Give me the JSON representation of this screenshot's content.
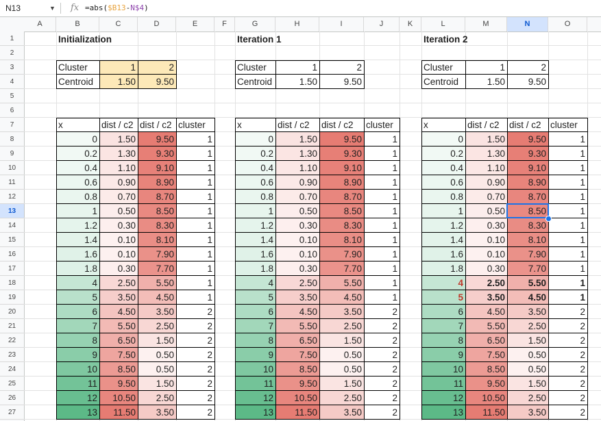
{
  "formula_bar": {
    "name_box": "N13",
    "fx": "fx",
    "formula_parts": [
      {
        "text": "=abs(",
        "color": "#1f1f1f"
      },
      {
        "text": "$B13",
        "color": "#e8a33d"
      },
      {
        "text": "-",
        "color": "#1f1f1f"
      },
      {
        "text": "N$4",
        "color": "#8e44ad"
      },
      {
        "text": ")",
        "color": "#1f1f1f"
      }
    ]
  },
  "columns": [
    "A",
    "B",
    "C",
    "D",
    "E",
    "F",
    "G",
    "H",
    "I",
    "J",
    "K",
    "L",
    "M",
    "N",
    "O"
  ],
  "rows": [
    "1",
    "2",
    "3",
    "4",
    "5",
    "6",
    "7",
    "8",
    "9",
    "10",
    "11",
    "12",
    "13",
    "14",
    "15",
    "16",
    "17",
    "18",
    "19",
    "20",
    "21",
    "22",
    "23",
    "24",
    "25",
    "26",
    "27"
  ],
  "selected_cell": {
    "col": "N",
    "row": "13"
  },
  "colors": {
    "cluster_header_fill": "#fde9b8",
    "green_low": "#f3faf6",
    "green_high": "#5cb987",
    "red_low": "#fdf1f0",
    "red_high": "#e67c73",
    "selection": "#1a73e8"
  },
  "blocks": [
    {
      "title": "Initialization",
      "cluster_label": "Cluster",
      "centroid_label": "Centroid",
      "clusters": [
        "1",
        "2"
      ],
      "centroids": [
        "1.50",
        "9.50"
      ],
      "highlight_centroid_table": true,
      "headers": [
        "x",
        "dist / c2",
        "dist / c2",
        "cluster"
      ],
      "rows": [
        [
          "0",
          "1.50",
          "9.50",
          "1"
        ],
        [
          "0.2",
          "1.30",
          "9.30",
          "1"
        ],
        [
          "0.4",
          "1.10",
          "9.10",
          "1"
        ],
        [
          "0.6",
          "0.90",
          "8.90",
          "1"
        ],
        [
          "0.8",
          "0.70",
          "8.70",
          "1"
        ],
        [
          "1",
          "0.50",
          "8.50",
          "1"
        ],
        [
          "1.2",
          "0.30",
          "8.30",
          "1"
        ],
        [
          "1.4",
          "0.10",
          "8.10",
          "1"
        ],
        [
          "1.6",
          "0.10",
          "7.90",
          "1"
        ],
        [
          "1.8",
          "0.30",
          "7.70",
          "1"
        ],
        [
          "4",
          "2.50",
          "5.50",
          "1"
        ],
        [
          "5",
          "3.50",
          "4.50",
          "1"
        ],
        [
          "6",
          "4.50",
          "3.50",
          "2"
        ],
        [
          "7",
          "5.50",
          "2.50",
          "2"
        ],
        [
          "8",
          "6.50",
          "1.50",
          "2"
        ],
        [
          "9",
          "7.50",
          "0.50",
          "2"
        ],
        [
          "10",
          "8.50",
          "0.50",
          "2"
        ],
        [
          "11",
          "9.50",
          "1.50",
          "2"
        ],
        [
          "12",
          "10.50",
          "2.50",
          "2"
        ],
        [
          "13",
          "11.50",
          "3.50",
          "2"
        ]
      ]
    },
    {
      "title": "Iteration 1",
      "cluster_label": "Cluster",
      "centroid_label": "Centroid",
      "clusters": [
        "1",
        "2"
      ],
      "centroids": [
        "1.50",
        "9.50"
      ],
      "highlight_centroid_table": false,
      "headers": [
        "x",
        "dist / c2",
        "dist / c2",
        "cluster"
      ],
      "rows": [
        [
          "0",
          "1.50",
          "9.50",
          "1"
        ],
        [
          "0.2",
          "1.30",
          "9.30",
          "1"
        ],
        [
          "0.4",
          "1.10",
          "9.10",
          "1"
        ],
        [
          "0.6",
          "0.90",
          "8.90",
          "1"
        ],
        [
          "0.8",
          "0.70",
          "8.70",
          "1"
        ],
        [
          "1",
          "0.50",
          "8.50",
          "1"
        ],
        [
          "1.2",
          "0.30",
          "8.30",
          "1"
        ],
        [
          "1.4",
          "0.10",
          "8.10",
          "1"
        ],
        [
          "1.6",
          "0.10",
          "7.90",
          "1"
        ],
        [
          "1.8",
          "0.30",
          "7.70",
          "1"
        ],
        [
          "4",
          "2.50",
          "5.50",
          "1"
        ],
        [
          "5",
          "3.50",
          "4.50",
          "1"
        ],
        [
          "6",
          "4.50",
          "3.50",
          "2"
        ],
        [
          "7",
          "5.50",
          "2.50",
          "2"
        ],
        [
          "8",
          "6.50",
          "1.50",
          "2"
        ],
        [
          "9",
          "7.50",
          "0.50",
          "2"
        ],
        [
          "10",
          "8.50",
          "0.50",
          "2"
        ],
        [
          "11",
          "9.50",
          "1.50",
          "2"
        ],
        [
          "12",
          "10.50",
          "2.50",
          "2"
        ],
        [
          "13",
          "11.50",
          "3.50",
          "2"
        ]
      ]
    },
    {
      "title": "Iteration 2",
      "cluster_label": "Cluster",
      "centroid_label": "Centroid",
      "clusters": [
        "1",
        "2"
      ],
      "centroids": [
        "1.50",
        "9.50"
      ],
      "highlight_centroid_table": false,
      "headers": [
        "x",
        "dist / c2",
        "dist / c2",
        "cluster"
      ],
      "bold_rows": [
        10,
        11
      ],
      "rows": [
        [
          "0",
          "1.50",
          "9.50",
          "1"
        ],
        [
          "0.2",
          "1.30",
          "9.30",
          "1"
        ],
        [
          "0.4",
          "1.10",
          "9.10",
          "1"
        ],
        [
          "0.6",
          "0.90",
          "8.90",
          "1"
        ],
        [
          "0.8",
          "0.70",
          "8.70",
          "1"
        ],
        [
          "1",
          "0.50",
          "8.50",
          "1"
        ],
        [
          "1.2",
          "0.30",
          "8.30",
          "1"
        ],
        [
          "1.4",
          "0.10",
          "8.10",
          "1"
        ],
        [
          "1.6",
          "0.10",
          "7.90",
          "1"
        ],
        [
          "1.8",
          "0.30",
          "7.70",
          "1"
        ],
        [
          "4",
          "2.50",
          "5.50",
          "1"
        ],
        [
          "5",
          "3.50",
          "4.50",
          "1"
        ],
        [
          "6",
          "4.50",
          "3.50",
          "2"
        ],
        [
          "7",
          "5.50",
          "2.50",
          "2"
        ],
        [
          "8",
          "6.50",
          "1.50",
          "2"
        ],
        [
          "9",
          "7.50",
          "0.50",
          "2"
        ],
        [
          "10",
          "8.50",
          "0.50",
          "2"
        ],
        [
          "11",
          "9.50",
          "1.50",
          "2"
        ],
        [
          "12",
          "10.50",
          "2.50",
          "2"
        ],
        [
          "13",
          "11.50",
          "3.50",
          "2"
        ]
      ]
    }
  ]
}
